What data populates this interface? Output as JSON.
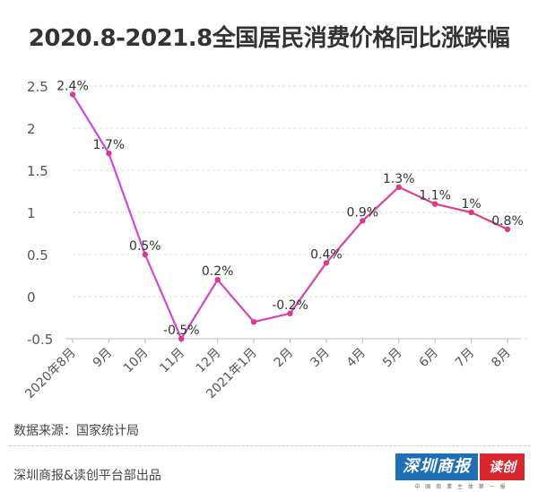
{
  "title": "2020.8-2021.8全国居民消费价格同比涨跌幅",
  "chart_data": {
    "type": "line",
    "title": "2020.8-2021.8全国居民消费价格同比涨跌幅",
    "categories": [
      "2020年8月",
      "9月",
      "10月",
      "11月",
      "12月",
      "2021年1月",
      "2月",
      "3月",
      "4月",
      "5月",
      "6月",
      "7月",
      "8月"
    ],
    "values": [
      2.4,
      1.7,
      0.5,
      -0.5,
      0.2,
      -0.3,
      -0.2,
      0.4,
      0.9,
      1.3,
      1.1,
      1.0,
      0.8
    ],
    "data_labels": [
      "2.4%",
      "1.7%",
      "0.5%",
      "-0.5%",
      "0.2%",
      "",
      "-0.2%",
      "0.4%",
      "0.9%",
      "1.3%",
      "1.1%",
      "1%",
      "0.8%"
    ],
    "yticks": [
      "2.5",
      "2",
      "1.5",
      "1",
      "0.5",
      "0",
      "-0.5"
    ],
    "ylim": [
      -0.5,
      2.5
    ],
    "xlabel": "",
    "ylabel": "",
    "grid": true,
    "colors": {
      "line_start": "#c84be6",
      "line_end": "#e0407a",
      "point": "#d63c8c"
    }
  },
  "footer": {
    "source": "数据来源：国家统计局",
    "publisher": "深圳商报&读创平台部出品",
    "logo_main": "深圳商报",
    "logo_app": "读创",
    "logo_sub": "中 国 商 業 主 体 第 一 报"
  }
}
